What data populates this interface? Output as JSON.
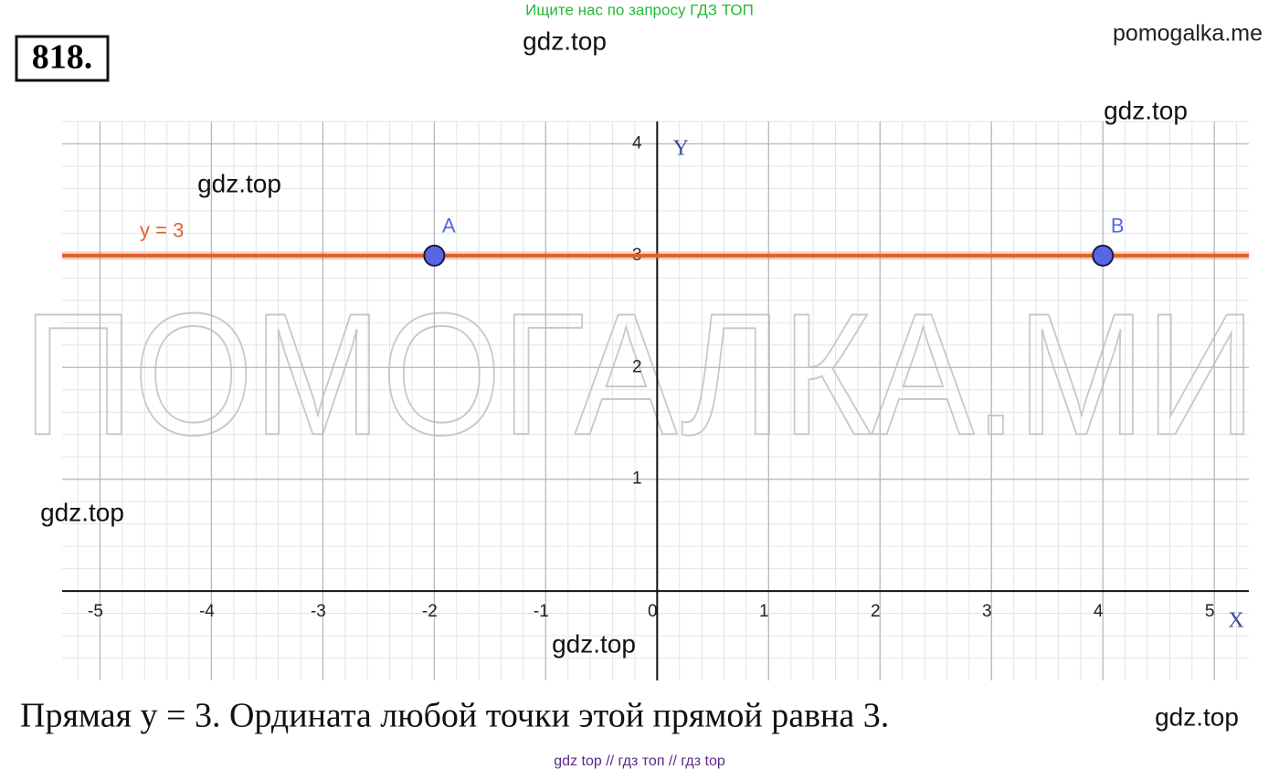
{
  "header": {
    "search_hint": "Ищите нас по запросу ГДЗ ТОП",
    "problem_number": "818.",
    "site": "pomogalka.me"
  },
  "watermarks": [
    "gdz.top",
    "gdz.top",
    "gdz.top",
    "gdz.top",
    "gdz.top",
    "gdz.top"
  ],
  "big_watermark": "ПОМОГАЛКА.МИ",
  "chart_data": {
    "type": "line",
    "x_axis_label": "X",
    "y_axis_label": "Y",
    "xlim": [
      -5.34,
      5.31
    ],
    "ylim": [
      -0.8,
      4.2
    ],
    "xticks": [
      -5,
      -4,
      -3,
      -2,
      -1,
      0,
      1,
      2,
      3,
      4,
      5
    ],
    "yticks": [
      1,
      2,
      3,
      4
    ],
    "grid": true,
    "lines": [
      {
        "label": "y = 3",
        "y": 3,
        "color": "#e2602c"
      }
    ],
    "points": [
      {
        "label": "A",
        "x": -2,
        "y": 3,
        "color": "#5566e6"
      },
      {
        "label": "B",
        "x": 4,
        "y": 3,
        "color": "#5566e6"
      }
    ]
  },
  "caption": "Прямая y = 3. Ордината любой точки этой прямой равна 3.",
  "footer": "gdz top  //  гдз топ  //  гдз top"
}
